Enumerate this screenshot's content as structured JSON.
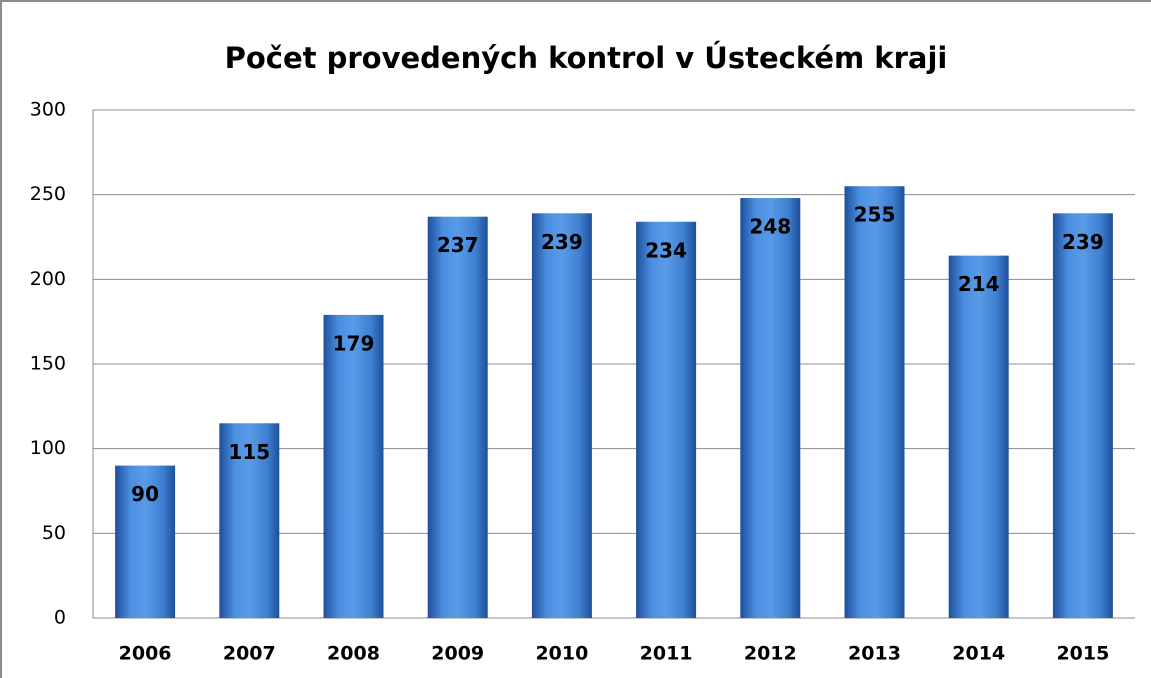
{
  "chart_data": {
    "type": "bar",
    "title": "Počet provedených kontrol v Ústeckém kraji",
    "categories": [
      "2006",
      "2007",
      "2008",
      "2009",
      "2010",
      "2011",
      "2012",
      "2013",
      "2014",
      "2015"
    ],
    "values": [
      90,
      115,
      179,
      237,
      239,
      234,
      248,
      255,
      214,
      239
    ],
    "color": "#3d7fd0",
    "ylim": [
      0,
      300
    ],
    "yticks": [
      0,
      50,
      100,
      150,
      200,
      250,
      300
    ],
    "grid": true
  }
}
